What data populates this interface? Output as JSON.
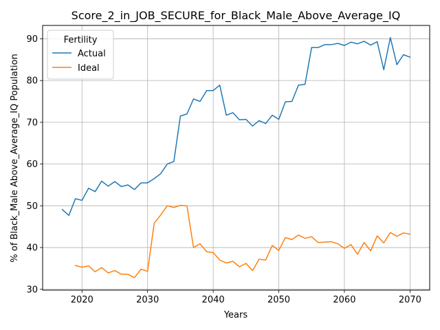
{
  "chart_data": {
    "type": "line",
    "title": "Score_2_in_JOB_SECURE_for_Black_Male_Above_Average_IQ",
    "xlabel": "Years",
    "ylabel": "% of Black_Male Above_Average_IQ Population",
    "xlim": [
      2014,
      2073
    ],
    "ylim": [
      29.8,
      93.2
    ],
    "xticks": [
      2020,
      2030,
      2040,
      2050,
      2060,
      2070
    ],
    "yticks": [
      30,
      40,
      50,
      60,
      70,
      80,
      90
    ],
    "grid": true,
    "legend": {
      "title": "Fertility",
      "placement": "top-left"
    },
    "series": [
      {
        "name": "Actual",
        "color": "#1f77b4",
        "x": [
          2017,
          2018,
          2019,
          2020,
          2021,
          2022,
          2023,
          2024,
          2025,
          2026,
          2027,
          2028,
          2029,
          2030,
          2031,
          2032,
          2033,
          2034,
          2035,
          2036,
          2037,
          2038,
          2039,
          2040,
          2041,
          2042,
          2043,
          2044,
          2045,
          2046,
          2047,
          2048,
          2049,
          2050,
          2051,
          2052,
          2053,
          2054,
          2055,
          2056,
          2057,
          2058,
          2059,
          2060,
          2061,
          2062,
          2063,
          2064,
          2065,
          2066,
          2067,
          2068,
          2069,
          2070
        ],
        "y": [
          49.1,
          47.7,
          51.7,
          51.3,
          54.2,
          53.4,
          55.9,
          54.7,
          55.8,
          54.6,
          55.0,
          53.9,
          55.5,
          55.5,
          56.5,
          57.7,
          60.0,
          60.6,
          71.5,
          72.0,
          75.6,
          75.0,
          77.6,
          77.6,
          78.9,
          71.7,
          72.3,
          70.6,
          70.7,
          69.1,
          70.4,
          69.7,
          71.7,
          70.7,
          74.9,
          75.0,
          78.9,
          79.1,
          87.9,
          87.9,
          88.6,
          88.6,
          88.9,
          88.4,
          89.2,
          88.8,
          89.4,
          88.5,
          89.3,
          82.6,
          90.3,
          83.8,
          86.2,
          85.6
        ]
      },
      {
        "name": "Ideal",
        "color": "#ff7f0e",
        "x": [
          2019,
          2020,
          2021,
          2022,
          2023,
          2024,
          2025,
          2026,
          2027,
          2028,
          2029,
          2030,
          2031,
          2032,
          2033,
          2034,
          2035,
          2036,
          2037,
          2038,
          2039,
          2040,
          2041,
          2042,
          2043,
          2044,
          2045,
          2046,
          2047,
          2048,
          2049,
          2050,
          2051,
          2052,
          2053,
          2054,
          2055,
          2056,
          2057,
          2058,
          2059,
          2060,
          2061,
          2062,
          2063,
          2064,
          2065,
          2066,
          2067,
          2068,
          2069,
          2070
        ],
        "y": [
          35.7,
          35.3,
          35.6,
          34.2,
          35.2,
          33.9,
          34.5,
          33.6,
          33.6,
          32.8,
          34.8,
          34.3,
          45.8,
          47.8,
          50.0,
          49.6,
          50.1,
          50.0,
          40.0,
          40.9,
          39.0,
          38.8,
          37.0,
          36.3,
          36.7,
          35.4,
          36.2,
          34.5,
          37.2,
          37.0,
          40.5,
          39.3,
          42.4,
          41.9,
          43.0,
          42.2,
          42.6,
          41.2,
          41.3,
          41.4,
          40.9,
          39.8,
          40.7,
          38.4,
          41.2,
          39.2,
          42.8,
          41.1,
          43.6,
          42.7,
          43.5,
          43.2
        ]
      }
    ]
  }
}
